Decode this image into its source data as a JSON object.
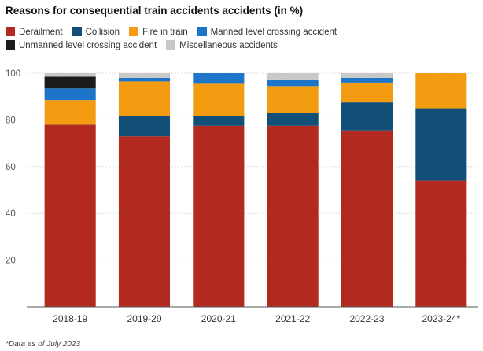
{
  "chart_data": {
    "type": "bar",
    "stacked": true,
    "title": "Reasons for consequential train accidents accidents (in %)",
    "categories": [
      "2018-19",
      "2019-20",
      "2020-21",
      "2021-22",
      "2022-23",
      "2023-24*"
    ],
    "series": [
      {
        "name": "Derailment",
        "color": "#b22a1f",
        "values": [
          78,
          73,
          77.5,
          77.5,
          75.5,
          54
        ]
      },
      {
        "name": "Collision",
        "color": "#114f79",
        "values": [
          0,
          8.5,
          4,
          5.5,
          12,
          31
        ]
      },
      {
        "name": "Fire in train",
        "color": "#f39c12",
        "values": [
          10.5,
          15,
          14,
          11.5,
          8.5,
          15
        ]
      },
      {
        "name": "Manned level crossing accident",
        "color": "#1c75c8",
        "values": [
          5,
          1.5,
          4.5,
          2.5,
          2,
          0
        ]
      },
      {
        "name": "Unmanned level crossing accident",
        "color": "#1b1b1b",
        "values": [
          5,
          0,
          0,
          0,
          0,
          0
        ]
      },
      {
        "name": "Miscellaneous accidents",
        "color": "#c8c8c8",
        "values": [
          1.5,
          2,
          0,
          3,
          2,
          0
        ]
      }
    ],
    "yticks": [
      20,
      40,
      60,
      80,
      100
    ],
    "ylim": [
      0,
      100
    ],
    "grid": true,
    "legend_position": "top"
  },
  "note": "*Data as of July 2023"
}
